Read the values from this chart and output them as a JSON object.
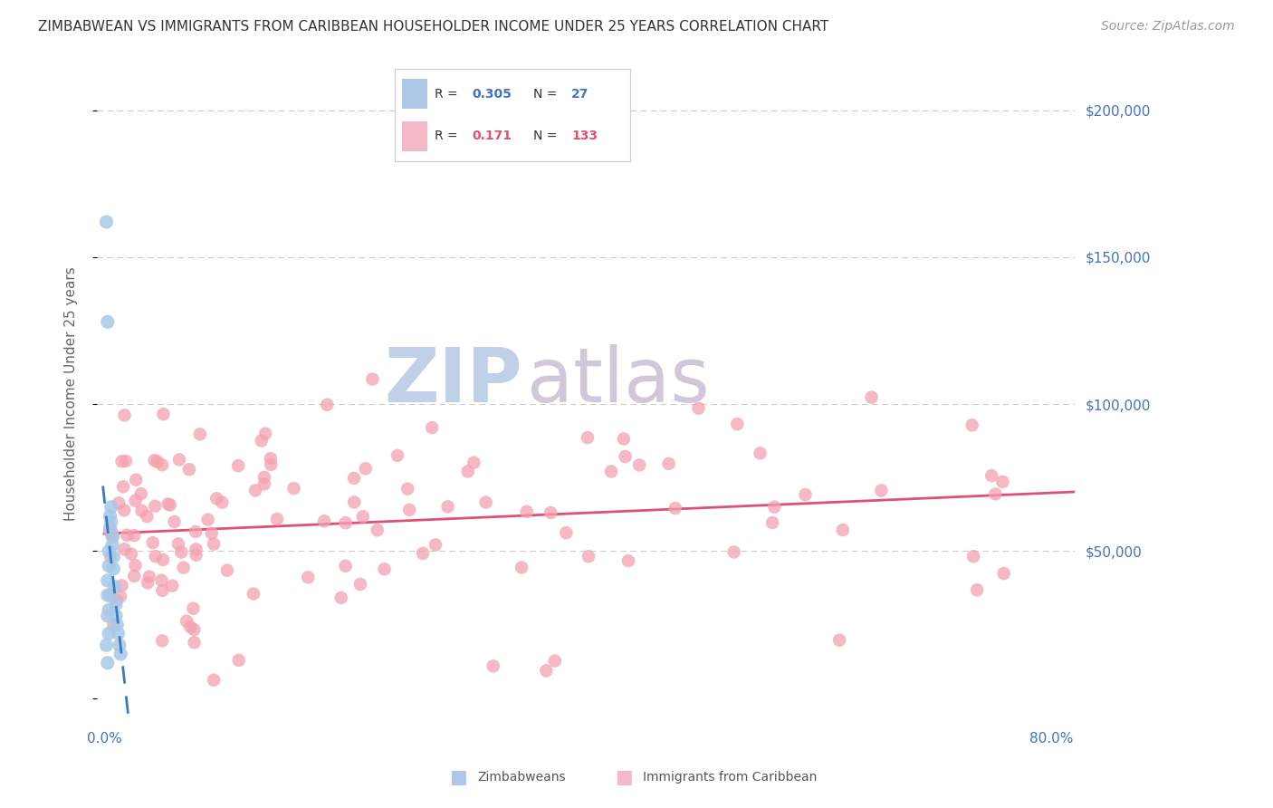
{
  "title": "ZIMBABWEAN VS IMMIGRANTS FROM CARIBBEAN HOUSEHOLDER INCOME UNDER 25 YEARS CORRELATION CHART",
  "source": "Source: ZipAtlas.com",
  "ylabel": "Householder Income Under 25 years",
  "zim_R": 0.305,
  "zim_N": 27,
  "carib_R": 0.171,
  "carib_N": 133,
  "zim_color": "#a8c8e8",
  "carib_color": "#f4a0b0",
  "zim_trend_color": "#3a7bbf",
  "carib_trend_color": "#e05070",
  "background_color": "#ffffff",
  "grid_color": "#cccccc",
  "title_fontsize": 11,
  "source_fontsize": 10,
  "axis_label_color": "#4472c4",
  "watermark_color_zip": "#c0d0e8",
  "watermark_color_atlas": "#d0c8d8",
  "legend_box_color_zim": "#aec6e8",
  "legend_box_color_carib": "#f4b8c8",
  "ylim_min": -8000,
  "ylim_max": 215000,
  "xlim_min": -0.006,
  "xlim_max": 0.82
}
